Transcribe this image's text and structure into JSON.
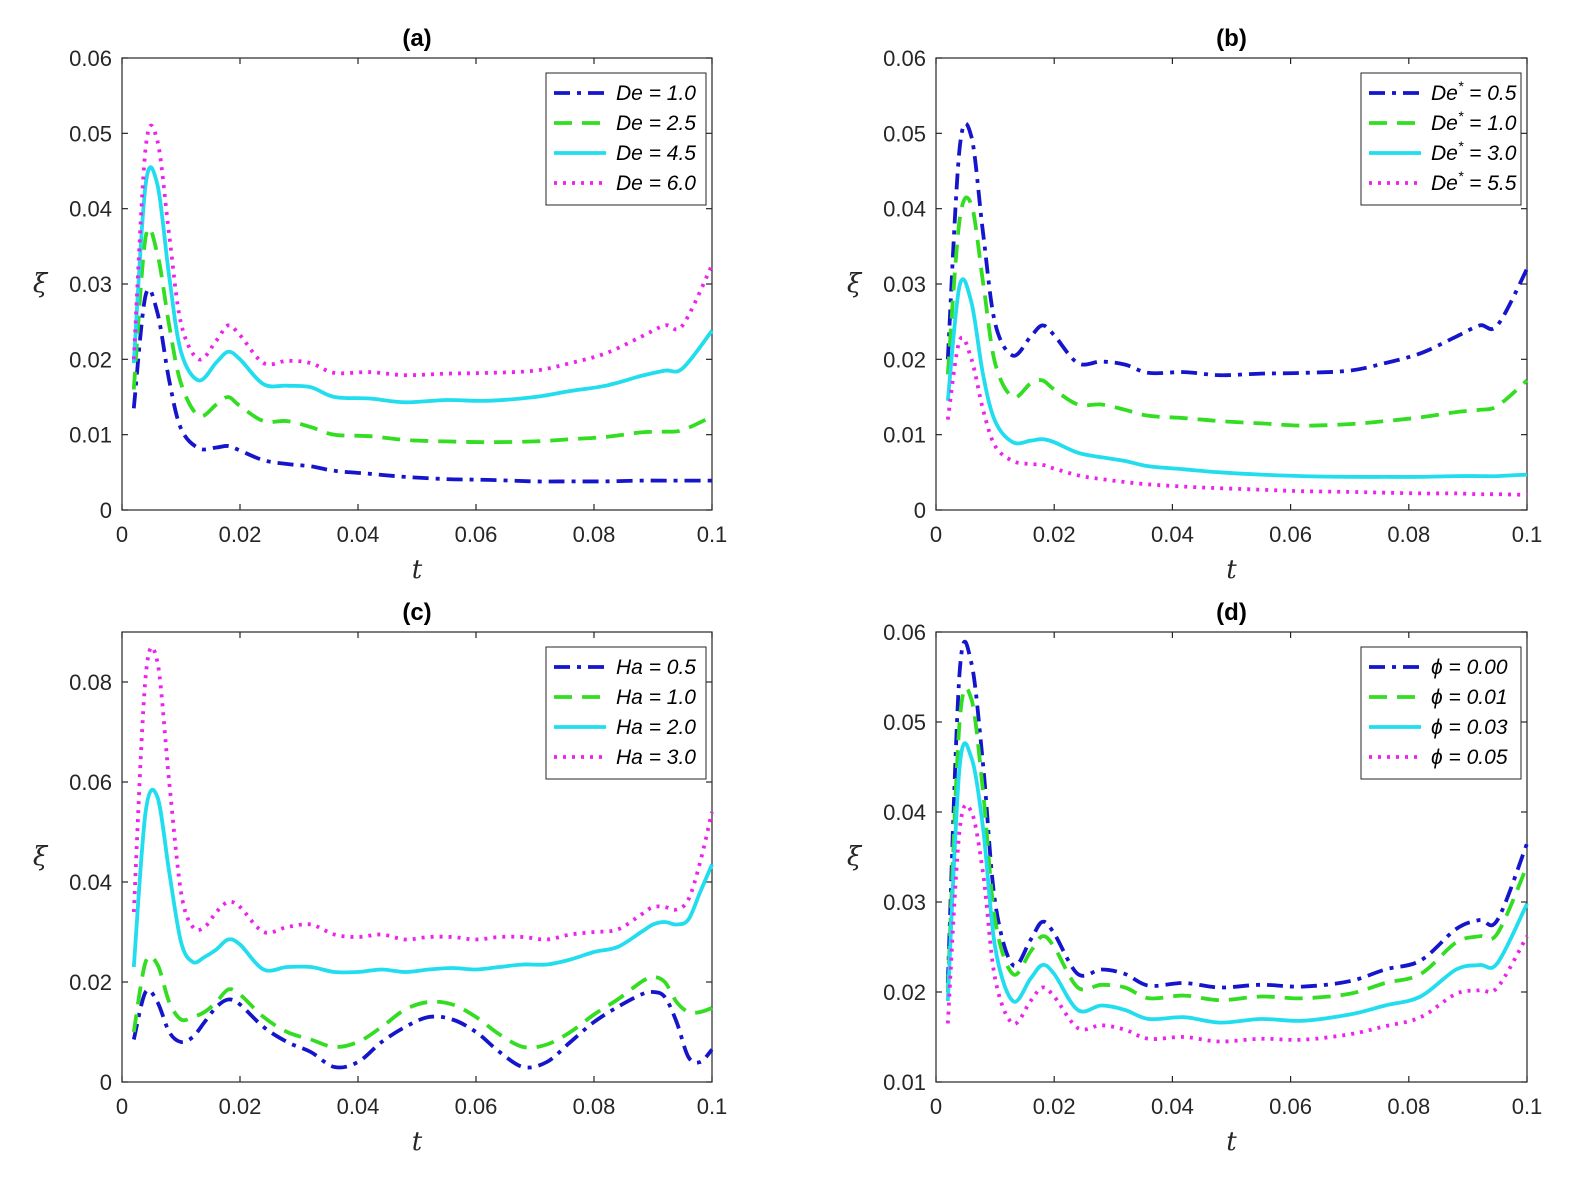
{
  "chart_data": [
    {
      "type": "line",
      "title": "(a)",
      "xlabel": "t",
      "ylabel": "ξ",
      "xlim": [
        0,
        0.1
      ],
      "ylim": [
        0,
        0.06
      ],
      "xticks": [
        0,
        0.02,
        0.04,
        0.06,
        0.08,
        0.1
      ],
      "xtick_labels": [
        "0",
        "0.02",
        "0.04",
        "0.06",
        "0.08",
        "0.1"
      ],
      "yticks": [
        0,
        0.01,
        0.02,
        0.03,
        0.04,
        0.05,
        0.06
      ],
      "ytick_labels": [
        "0",
        "0.01",
        "0.02",
        "0.03",
        "0.04",
        "0.05",
        "0.06"
      ],
      "legend_position": "top-right",
      "x": [
        0.002,
        0.004,
        0.006,
        0.008,
        0.01,
        0.013,
        0.016,
        0.018,
        0.02,
        0.024,
        0.028,
        0.032,
        0.036,
        0.042,
        0.048,
        0.055,
        0.062,
        0.07,
        0.076,
        0.082,
        0.088,
        0.092,
        0.095,
        0.1
      ],
      "series": [
        {
          "name": "De = 1.0",
          "legend_prefix": "De",
          "legend_sup": "",
          "legend_value": " = 1.0",
          "color": "#1515cc",
          "dash": "dashdot",
          "values": [
            0.0135,
            0.0285,
            0.0262,
            0.0172,
            0.0108,
            0.0082,
            0.0083,
            0.0085,
            0.0079,
            0.0066,
            0.0061,
            0.0058,
            0.0052,
            0.0048,
            0.0044,
            0.0041,
            0.004,
            0.0038,
            0.0038,
            0.0038,
            0.0039,
            0.0039,
            0.0039,
            0.0039
          ]
        },
        {
          "name": "De = 2.5",
          "legend_prefix": "De",
          "legend_sup": "",
          "legend_value": " = 2.5",
          "color": "#33dd22",
          "dash": "dash",
          "values": [
            0.016,
            0.0362,
            0.034,
            0.0245,
            0.0168,
            0.0125,
            0.014,
            0.015,
            0.0138,
            0.0118,
            0.0118,
            0.011,
            0.01,
            0.0098,
            0.0093,
            0.0091,
            0.009,
            0.0091,
            0.0094,
            0.0097,
            0.0103,
            0.0104,
            0.0106,
            0.0124
          ]
        },
        {
          "name": "De = 4.5",
          "legend_prefix": "De",
          "legend_sup": "",
          "legend_value": " = 4.5",
          "color": "#22ddee",
          "dash": "solid",
          "values": [
            0.0195,
            0.0432,
            0.0432,
            0.031,
            0.021,
            0.0172,
            0.0196,
            0.021,
            0.02,
            0.0167,
            0.0165,
            0.0163,
            0.015,
            0.0148,
            0.0143,
            0.0146,
            0.0145,
            0.015,
            0.0158,
            0.0165,
            0.0178,
            0.0185,
            0.0188,
            0.0238
          ]
        },
        {
          "name": "De = 6.0",
          "legend_prefix": "De",
          "legend_sup": "",
          "legend_value": " = 6.0",
          "color": "#ee22ee",
          "dash": "dot",
          "values": [
            0.02,
            0.048,
            0.049,
            0.0365,
            0.0248,
            0.02,
            0.0225,
            0.0245,
            0.0232,
            0.0195,
            0.0198,
            0.0195,
            0.0182,
            0.0183,
            0.0179,
            0.0181,
            0.0182,
            0.0185,
            0.0195,
            0.0208,
            0.023,
            0.0245,
            0.0245,
            0.0325
          ]
        }
      ]
    },
    {
      "type": "line",
      "title": "(b)",
      "xlabel": "t",
      "ylabel": "ξ",
      "xlim": [
        0,
        0.1
      ],
      "ylim": [
        0,
        0.06
      ],
      "xticks": [
        0,
        0.02,
        0.04,
        0.06,
        0.08,
        0.1
      ],
      "xtick_labels": [
        "0",
        "0.02",
        "0.04",
        "0.06",
        "0.08",
        "0.1"
      ],
      "yticks": [
        0,
        0.01,
        0.02,
        0.03,
        0.04,
        0.05,
        0.06
      ],
      "ytick_labels": [
        "0",
        "0.01",
        "0.02",
        "0.03",
        "0.04",
        "0.05",
        "0.06"
      ],
      "legend_position": "top-right",
      "x": [
        0.002,
        0.004,
        0.006,
        0.008,
        0.01,
        0.013,
        0.016,
        0.018,
        0.02,
        0.024,
        0.028,
        0.032,
        0.036,
        0.042,
        0.048,
        0.055,
        0.062,
        0.07,
        0.076,
        0.082,
        0.088,
        0.092,
        0.095,
        0.1
      ],
      "series": [
        {
          "name": "De* = 0.5",
          "legend_prefix": "De",
          "legend_sup": "*",
          "legend_value": " = 0.5",
          "color": "#1515cc",
          "dash": "dashdot",
          "values": [
            0.02,
            0.048,
            0.0495,
            0.0365,
            0.0248,
            0.0205,
            0.023,
            0.0245,
            0.0232,
            0.0195,
            0.0197,
            0.0193,
            0.0182,
            0.0183,
            0.0179,
            0.0181,
            0.0182,
            0.0185,
            0.0195,
            0.0208,
            0.023,
            0.0245,
            0.0245,
            0.032
          ]
        },
        {
          "name": "De* = 1.0",
          "legend_prefix": "De",
          "legend_sup": "*",
          "legend_value": " = 1.0",
          "color": "#33dd22",
          "dash": "dash",
          "values": [
            0.018,
            0.0385,
            0.0405,
            0.03,
            0.0195,
            0.015,
            0.0168,
            0.0172,
            0.016,
            0.014,
            0.014,
            0.0133,
            0.0125,
            0.0122,
            0.0118,
            0.0115,
            0.0112,
            0.0114,
            0.0118,
            0.0123,
            0.013,
            0.0133,
            0.0138,
            0.0172
          ]
        },
        {
          "name": "De* = 3.0",
          "legend_prefix": "De",
          "legend_sup": "*",
          "legend_value": " = 3.0",
          "color": "#22ddee",
          "dash": "solid",
          "values": [
            0.0145,
            0.0298,
            0.0275,
            0.0178,
            0.0118,
            0.009,
            0.0092,
            0.0094,
            0.009,
            0.0076,
            0.007,
            0.0065,
            0.0058,
            0.0054,
            0.005,
            0.0047,
            0.0045,
            0.0044,
            0.0044,
            0.0044,
            0.0045,
            0.0045,
            0.0045,
            0.0047
          ]
        },
        {
          "name": "De* = 5.5",
          "legend_prefix": "De",
          "legend_sup": "*",
          "legend_value": " = 5.5",
          "color": "#ee22ee",
          "dash": "dot",
          "values": [
            0.012,
            0.0225,
            0.02,
            0.0132,
            0.0085,
            0.0065,
            0.0061,
            0.006,
            0.0055,
            0.0046,
            0.0041,
            0.0037,
            0.0034,
            0.0031,
            0.0029,
            0.0027,
            0.0025,
            0.0024,
            0.0023,
            0.0022,
            0.0022,
            0.0021,
            0.0021,
            0.002
          ]
        }
      ]
    },
    {
      "type": "line",
      "title": "(c)",
      "xlabel": "t",
      "ylabel": "ξ",
      "xlim": [
        0,
        0.1
      ],
      "ylim": [
        0,
        0.09
      ],
      "xticks": [
        0,
        0.02,
        0.04,
        0.06,
        0.08,
        0.1
      ],
      "xtick_labels": [
        "0",
        "0.02",
        "0.04",
        "0.06",
        "0.08",
        "0.1"
      ],
      "yticks": [
        0,
        0.02,
        0.04,
        0.06,
        0.08
      ],
      "ytick_labels": [
        "0",
        "0.02",
        "0.04",
        "0.06",
        "0.08"
      ],
      "legend_position": "top-right",
      "x": [
        0.002,
        0.004,
        0.006,
        0.008,
        0.01,
        0.012,
        0.014,
        0.016,
        0.018,
        0.02,
        0.024,
        0.028,
        0.032,
        0.036,
        0.04,
        0.044,
        0.048,
        0.052,
        0.056,
        0.06,
        0.064,
        0.068,
        0.072,
        0.076,
        0.08,
        0.084,
        0.088,
        0.09,
        0.092,
        0.094,
        0.096,
        0.098,
        0.1
      ],
      "series": [
        {
          "name": "Ha = 0.5",
          "legend_prefix": "Ha",
          "legend_sup": "",
          "legend_value": " = 0.5",
          "color": "#1515cc",
          "dash": "dashdot",
          "values": [
            0.0085,
            0.018,
            0.016,
            0.01,
            0.008,
            0.009,
            0.012,
            0.015,
            0.0165,
            0.0155,
            0.011,
            0.008,
            0.006,
            0.003,
            0.004,
            0.008,
            0.011,
            0.013,
            0.0125,
            0.01,
            0.006,
            0.003,
            0.004,
            0.008,
            0.012,
            0.015,
            0.0175,
            0.018,
            0.017,
            0.012,
            0.005,
            0.004,
            0.0065
          ]
        },
        {
          "name": "Ha = 1.0",
          "legend_prefix": "Ha",
          "legend_sup": "",
          "legend_value": " = 1.0",
          "color": "#33dd22",
          "dash": "dash",
          "values": [
            0.01,
            0.024,
            0.0235,
            0.016,
            0.0125,
            0.013,
            0.014,
            0.016,
            0.0185,
            0.0175,
            0.013,
            0.01,
            0.0085,
            0.007,
            0.008,
            0.011,
            0.0145,
            0.016,
            0.0155,
            0.013,
            0.0095,
            0.007,
            0.0075,
            0.01,
            0.0135,
            0.0165,
            0.02,
            0.021,
            0.02,
            0.016,
            0.014,
            0.014,
            0.0148
          ]
        },
        {
          "name": "Ha = 2.0",
          "legend_prefix": "Ha",
          "legend_sup": "",
          "legend_value": " = 2.0",
          "color": "#22ddee",
          "dash": "solid",
          "values": [
            0.023,
            0.054,
            0.057,
            0.042,
            0.028,
            0.024,
            0.025,
            0.0265,
            0.0285,
            0.0275,
            0.0225,
            0.023,
            0.023,
            0.022,
            0.022,
            0.0225,
            0.022,
            0.0225,
            0.0228,
            0.0225,
            0.023,
            0.0235,
            0.0235,
            0.0245,
            0.026,
            0.027,
            0.03,
            0.0315,
            0.032,
            0.0315,
            0.0325,
            0.038,
            0.0435
          ]
        },
        {
          "name": "Ha = 3.0",
          "legend_prefix": "Ha",
          "legend_sup": "",
          "legend_value": " = 3.0",
          "color": "#ee22ee",
          "dash": "dot",
          "values": [
            0.034,
            0.081,
            0.084,
            0.06,
            0.038,
            0.031,
            0.031,
            0.034,
            0.036,
            0.035,
            0.03,
            0.031,
            0.0315,
            0.0295,
            0.029,
            0.0295,
            0.0285,
            0.029,
            0.029,
            0.0285,
            0.029,
            0.029,
            0.0285,
            0.0295,
            0.03,
            0.0305,
            0.0335,
            0.035,
            0.035,
            0.0345,
            0.0365,
            0.044,
            0.054
          ]
        }
      ]
    },
    {
      "type": "line",
      "title": "(d)",
      "xlabel": "t",
      "ylabel": "ξ",
      "xlim": [
        0,
        0.1
      ],
      "ylim": [
        0.01,
        0.06
      ],
      "xticks": [
        0,
        0.02,
        0.04,
        0.06,
        0.08,
        0.1
      ],
      "xtick_labels": [
        "0",
        "0.02",
        "0.04",
        "0.06",
        "0.08",
        "0.1"
      ],
      "yticks": [
        0.01,
        0.02,
        0.03,
        0.04,
        0.05,
        0.06
      ],
      "ytick_labels": [
        "0.01",
        "0.02",
        "0.03",
        "0.04",
        "0.05",
        "0.06"
      ],
      "legend_position": "top-right",
      "x": [
        0.002,
        0.004,
        0.006,
        0.008,
        0.01,
        0.013,
        0.016,
        0.018,
        0.02,
        0.024,
        0.028,
        0.032,
        0.036,
        0.042,
        0.048,
        0.055,
        0.062,
        0.07,
        0.076,
        0.082,
        0.088,
        0.092,
        0.095,
        0.1
      ],
      "series": [
        {
          "name": "ϕ = 0.00",
          "legend_prefix": "ϕ",
          "legend_sup": "",
          "legend_value": " = 0.00",
          "color": "#1515cc",
          "dash": "dashdot",
          "values": [
            0.021,
            0.0555,
            0.0565,
            0.045,
            0.03,
            0.023,
            0.0258,
            0.0278,
            0.0265,
            0.022,
            0.0225,
            0.022,
            0.0207,
            0.021,
            0.0205,
            0.0208,
            0.0206,
            0.0212,
            0.0225,
            0.0235,
            0.027,
            0.028,
            0.028,
            0.0365
          ]
        },
        {
          "name": "ϕ = 0.01",
          "legend_prefix": "ϕ",
          "legend_sup": "",
          "legend_value": " = 0.01",
          "color": "#33dd22",
          "dash": "dash",
          "values": [
            0.02,
            0.05,
            0.0525,
            0.042,
            0.028,
            0.022,
            0.0245,
            0.0262,
            0.025,
            0.0205,
            0.0208,
            0.0205,
            0.0193,
            0.0196,
            0.0191,
            0.0195,
            0.0193,
            0.0198,
            0.021,
            0.022,
            0.0255,
            0.0262,
            0.0265,
            0.034
          ]
        },
        {
          "name": "ϕ = 0.03",
          "legend_prefix": "ϕ",
          "legend_sup": "",
          "legend_value": " = 0.03",
          "color": "#22ddee",
          "dash": "solid",
          "values": [
            0.019,
            0.045,
            0.046,
            0.038,
            0.025,
            0.019,
            0.0215,
            0.023,
            0.022,
            0.018,
            0.0185,
            0.018,
            0.017,
            0.0172,
            0.0166,
            0.017,
            0.0168,
            0.0175,
            0.0185,
            0.0195,
            0.0225,
            0.023,
            0.0232,
            0.0298
          ]
        },
        {
          "name": "ϕ = 0.05",
          "legend_prefix": "ϕ",
          "legend_sup": "",
          "legend_value": " = 0.05",
          "color": "#ee22ee",
          "dash": "dot",
          "values": [
            0.0165,
            0.038,
            0.04,
            0.033,
            0.0215,
            0.0165,
            0.019,
            0.0205,
            0.0195,
            0.016,
            0.0163,
            0.0158,
            0.0148,
            0.015,
            0.0145,
            0.0148,
            0.0147,
            0.0153,
            0.0162,
            0.0172,
            0.0198,
            0.0202,
            0.0205,
            0.0262
          ]
        }
      ]
    }
  ]
}
